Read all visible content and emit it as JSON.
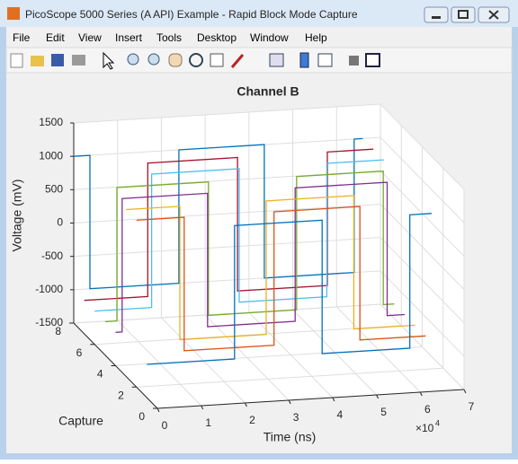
{
  "window": {
    "title": "PicoScope 5000 Series (A API) Example - Rapid Block Mode Capture",
    "menu": [
      "File",
      "Edit",
      "View",
      "Insert",
      "Tools",
      "Desktop",
      "Window",
      "Help"
    ]
  },
  "chart_data": {
    "type": "line3d",
    "title": "Channel B",
    "xlabel": "Time (ns)",
    "ylabel": "Capture",
    "zlabel": "Voltage (mV)",
    "x_multiplier": {
      "base": "×10",
      "exponent": 4
    },
    "xlim": [
      0,
      70000
    ],
    "ylim": [
      0,
      8
    ],
    "zlim": [
      -1500,
      1500
    ],
    "xticks": [
      {
        "value": 0,
        "label": "0"
      },
      {
        "value": 10000,
        "label": "1"
      },
      {
        "value": 20000,
        "label": "2"
      },
      {
        "value": 30000,
        "label": "3"
      },
      {
        "value": 40000,
        "label": "4"
      },
      {
        "value": 50000,
        "label": "5"
      },
      {
        "value": 60000,
        "label": "6"
      },
      {
        "value": 70000,
        "label": "7"
      }
    ],
    "yticks": [
      0,
      2,
      4,
      6,
      8
    ],
    "zticks": [
      -1500,
      -1000,
      -500,
      0,
      500,
      1000,
      1500
    ],
    "grid": true,
    "series": [
      {
        "color": "#0072bd",
        "capture": 8,
        "x": [
          0,
          3700,
          3700,
          24000,
          24000,
          43500,
          43500,
          64000,
          64000,
          66000
        ],
        "values": [
          1000,
          1000,
          -1000,
          -1000,
          1000,
          1000,
          -1000,
          -1000,
          1000,
          1000
        ]
      },
      {
        "color": "#a2142f",
        "capture": 7,
        "x": [
          0,
          14500,
          14500,
          35000,
          35000,
          55500,
          55500,
          66000
        ],
        "values": [
          -1000,
          -1000,
          1000,
          1000,
          -1000,
          -1000,
          1000,
          1000
        ]
      },
      {
        "color": "#4dbeee",
        "capture": 6,
        "x": [
          0,
          13000,
          13000,
          33000,
          33000,
          53000,
          53000,
          66000
        ],
        "values": [
          -1000,
          -1000,
          1000,
          1000,
          -1000,
          -1000,
          1000,
          1000
        ]
      },
      {
        "color": "#77ac30",
        "capture": 5,
        "x": [
          0,
          2700,
          2700,
          23600,
          23600,
          43700,
          43700,
          63500,
          63500,
          66000
        ],
        "values": [
          -1000,
          -1000,
          1000,
          1000,
          -1000,
          -1000,
          1000,
          1000,
          -1000,
          -1000
        ]
      },
      {
        "color": "#7e2f8e",
        "capture": 4,
        "x": [
          0,
          1500,
          1500,
          21000,
          21000,
          41000,
          41000,
          62000,
          62000,
          66000
        ],
        "values": [
          -1000,
          -1000,
          1000,
          1000,
          -1000,
          -1000,
          1000,
          1000,
          -1000,
          -1000
        ]
      },
      {
        "color": "#edb120",
        "capture": 3,
        "x": [
          0,
          12300,
          12300,
          32000,
          32000,
          52000,
          52000,
          66000
        ],
        "values": [
          1000,
          1000,
          -1000,
          -1000,
          1000,
          1000,
          -1000,
          -1000
        ]
      },
      {
        "color": "#d95319",
        "capture": 2,
        "x": [
          0,
          10900,
          10900,
          31400,
          31400,
          51000,
          51000,
          66000
        ],
        "values": [
          1000,
          1000,
          -1000,
          -1000,
          1000,
          1000,
          -1000,
          -1000
        ]
      },
      {
        "color": "#0072bd",
        "capture": 1,
        "x": [
          0,
          20000,
          20000,
          40000,
          40000,
          60000,
          60000,
          65000
        ],
        "values": [
          -1000,
          -1000,
          1000,
          1000,
          -1000,
          -1000,
          1000,
          1000
        ]
      }
    ]
  }
}
